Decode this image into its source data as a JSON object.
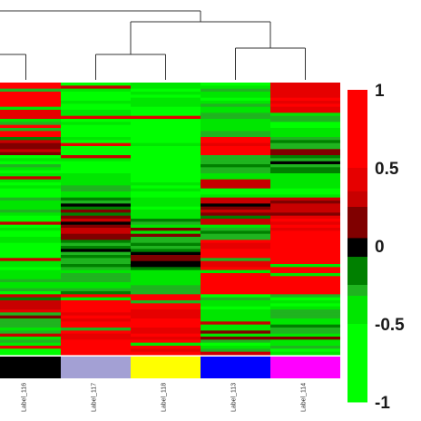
{
  "chart_data": {
    "type": "heatmap",
    "title": "",
    "xlabel": "",
    "ylabel": "",
    "columns": [
      "Label_116",
      "Label_117",
      "Label_118",
      "Label_113",
      "Label_114"
    ],
    "column_group_colors": [
      "#000000",
      "#a3a0d4",
      "#ffff00",
      "#0000ff",
      "#ff00ff"
    ],
    "color_scale": {
      "min": -1,
      "max": 1,
      "ticks": [
        "1",
        "0.5",
        "0",
        "-0.5",
        "-1"
      ],
      "tick_values": [
        1,
        0.5,
        0,
        -0.5,
        -1
      ],
      "bands": [
        {
          "from": 0.75,
          "to": 1.0,
          "color": "#ff0000"
        },
        {
          "from": 0.5,
          "to": 0.75,
          "color": "#e60000"
        },
        {
          "from": 0.25,
          "to": 0.5,
          "color": "#c80000"
        },
        {
          "from": 0.0,
          "to": 0.25,
          "color": "#800000"
        },
        {
          "from": -0.05,
          "to": 0.05,
          "color": "#000000"
        },
        {
          "from": -0.25,
          "to": 0.0,
          "color": "#008000"
        },
        {
          "from": -0.5,
          "to": -0.25,
          "color": "#1fb41f"
        },
        {
          "from": -0.75,
          "to": -0.5,
          "color": "#00e600"
        },
        {
          "from": -1.0,
          "to": -0.75,
          "color": "#00ff00"
        }
      ]
    },
    "dendrogram": {
      "merges": [
        {
          "left": "Label_117",
          "right": "Label_118"
        },
        {
          "left": "Label_113",
          "right": "Label_114"
        },
        {
          "left": "cluster(Label_117,Label_118)",
          "right": "cluster(Label_113,Label_114)"
        },
        {
          "left": "Label_116",
          "right": "cluster(Label_117,Label_118,Label_113,Label_114)"
        }
      ]
    },
    "row_blocks": [
      {
        "rows": 10,
        "values": [
          0.9,
          -0.7,
          -0.7,
          -0.6,
          0.7
        ]
      },
      {
        "rows": 8,
        "values": [
          0.85,
          -0.8,
          -0.9,
          -0.5,
          -0.6
        ]
      },
      {
        "rows": 6,
        "values": [
          0.3,
          -0.9,
          -0.95,
          0.9,
          -0.3
        ]
      },
      {
        "rows": 6,
        "values": [
          -0.6,
          -0.8,
          -0.9,
          -0.4,
          -0.2
        ]
      },
      {
        "rows": 8,
        "values": [
          -0.7,
          -0.5,
          -0.8,
          -0.6,
          -0.7
        ]
      },
      {
        "rows": 6,
        "values": [
          -0.5,
          -0.1,
          -0.6,
          0.2,
          0.3
        ]
      },
      {
        "rows": 8,
        "values": [
          -0.8,
          0.2,
          -0.4,
          -0.3,
          0.7
        ]
      },
      {
        "rows": 10,
        "values": [
          -0.7,
          -0.2,
          -0.1,
          0.9,
          0.9
        ]
      },
      {
        "rows": 8,
        "values": [
          -0.6,
          -0.4,
          -0.5,
          0.9,
          0.9
        ]
      },
      {
        "rows": 6,
        "values": [
          0.4,
          0.9,
          0.9,
          -0.7,
          -0.6
        ]
      },
      {
        "rows": 10,
        "values": [
          -0.5,
          0.9,
          0.85,
          -0.5,
          -0.4
        ]
      },
      {
        "rows": 4,
        "values": [
          -0.9,
          0.9,
          0.9,
          -0.6,
          -0.6
        ]
      }
    ]
  }
}
